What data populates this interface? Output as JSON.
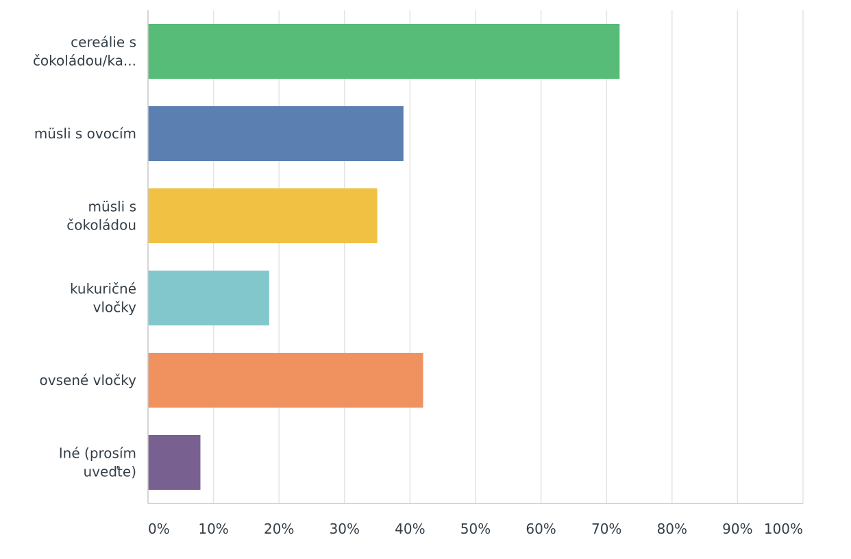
{
  "chart_data": {
    "type": "bar",
    "orientation": "horizontal",
    "categories": [
      [
        "cereálie s",
        "čokoládou/ka..."
      ],
      [
        "müsli s ovocím"
      ],
      [
        "müsli s",
        "čokoládou"
      ],
      [
        "kukuričné",
        "vločky"
      ],
      [
        "ovsené vločky"
      ],
      [
        "Iné (prosím",
        "uveďte)"
      ]
    ],
    "values": [
      72,
      39,
      35,
      18.5,
      42,
      8
    ],
    "colors": [
      "#57bc78",
      "#5b7fb1",
      "#f0c143",
      "#82c7cc",
      "#f0925f",
      "#786190"
    ],
    "xlim": [
      0,
      100
    ],
    "xticks": [
      0,
      10,
      20,
      30,
      40,
      50,
      60,
      70,
      80,
      90,
      100
    ],
    "xtick_labels": [
      "0%",
      "10%",
      "20%",
      "30%",
      "40%",
      "50%",
      "60%",
      "70%",
      "80%",
      "90%",
      "100%"
    ],
    "grid": true
  }
}
